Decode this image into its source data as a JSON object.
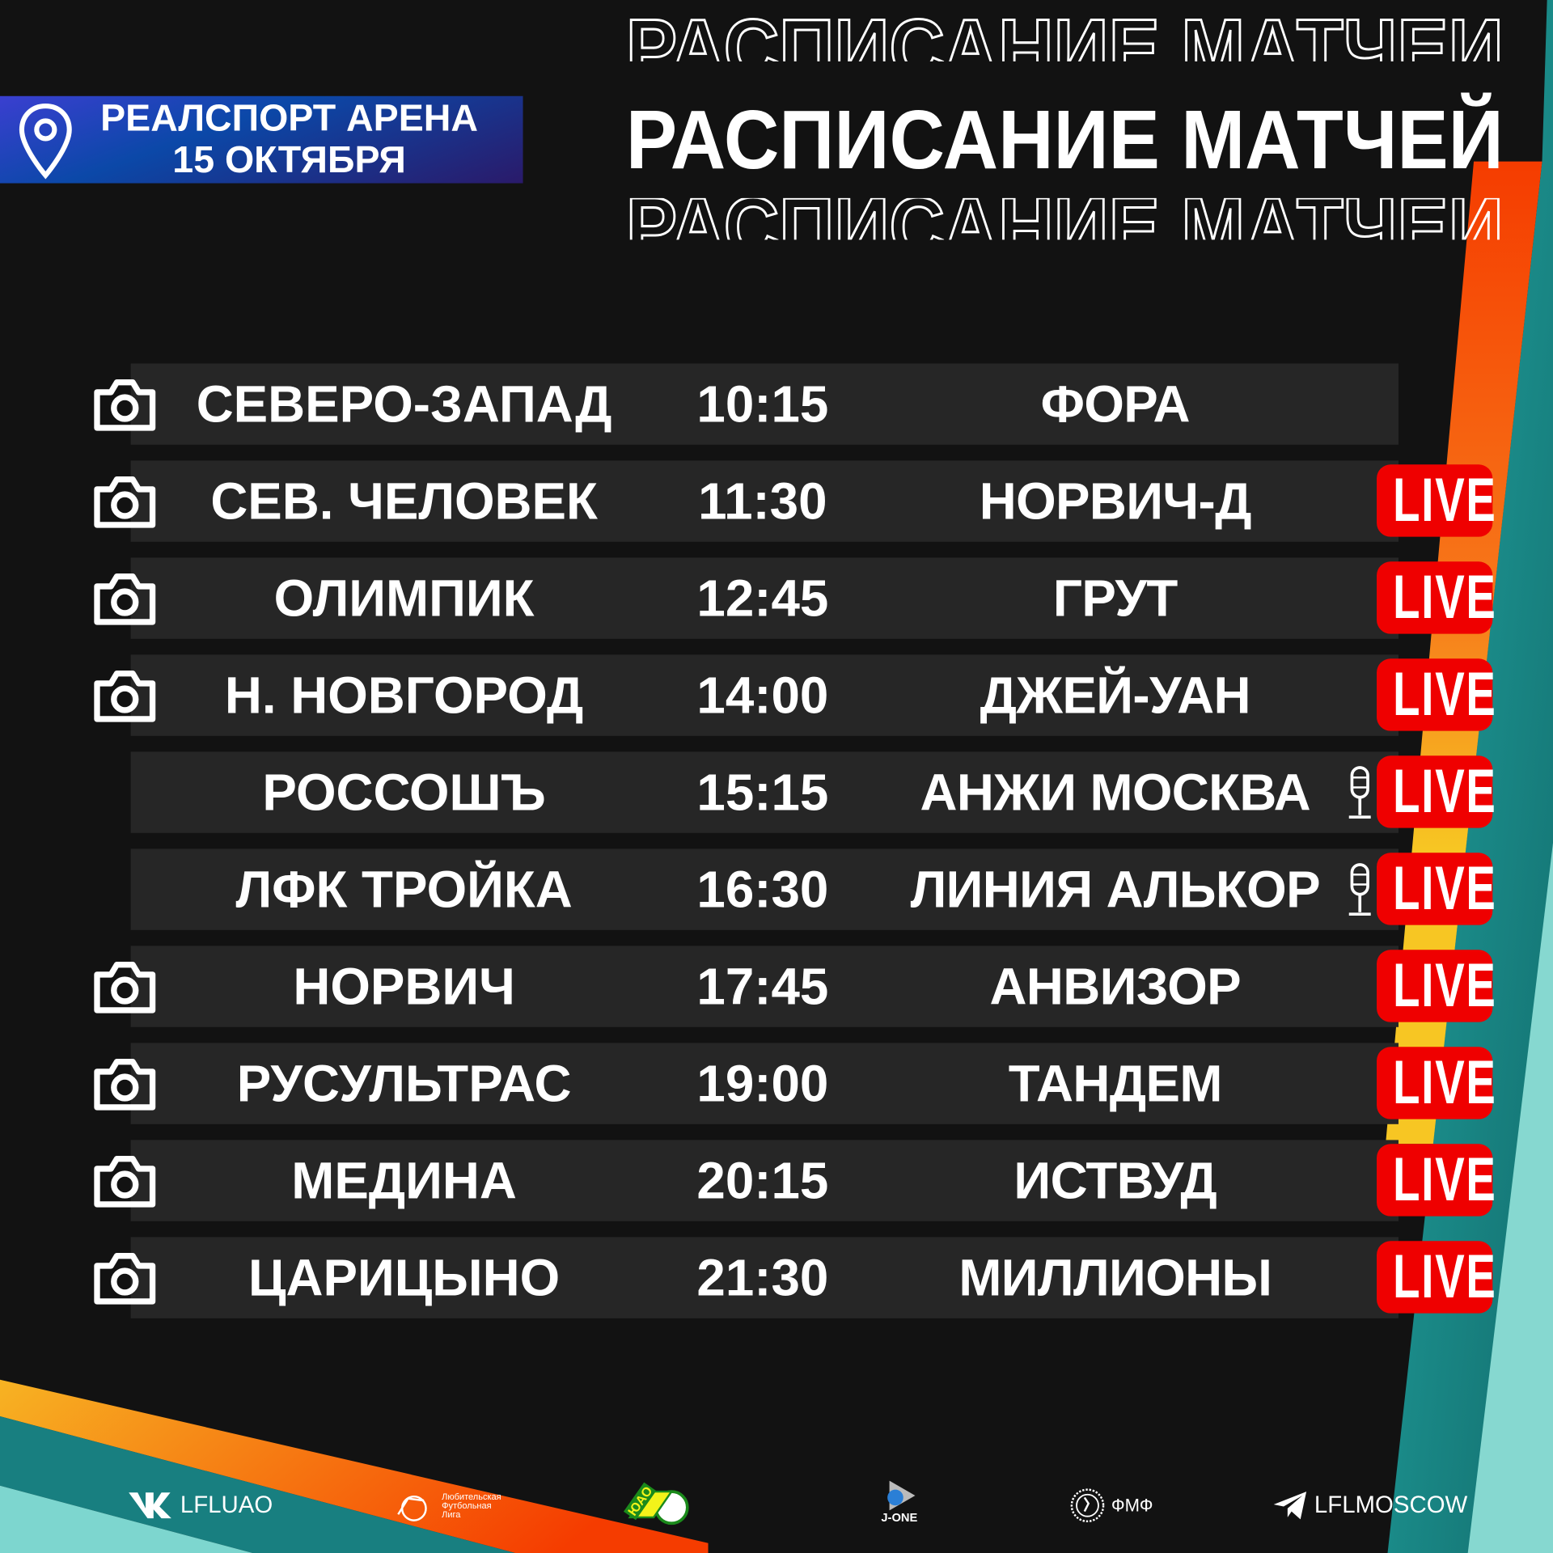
{
  "header": {
    "title": "РАСПИСАНИЕ МАТЧЕЙ",
    "venue": "РЕАЛСПОРТ АРЕНА",
    "date": "15 ОКТЯБРЯ",
    "venue_icon": "map-pin-icon"
  },
  "colors": {
    "background": "#121212",
    "row": "#262626",
    "live": "#ef0000",
    "orange": "#f53c00",
    "yellow": "#f7c623",
    "teal": "#167a7a",
    "light_teal": "#86d8d0"
  },
  "matches": [
    {
      "team1": "СЕВЕРО-ЗАПАД",
      "time": "10:15",
      "team2": "ФОРА",
      "camera": true,
      "mic": false,
      "live": false
    },
    {
      "team1": "СЕВ. ЧЕЛОВЕК",
      "time": "11:30",
      "team2": "НОРВИЧ-Д",
      "camera": true,
      "mic": false,
      "live": true
    },
    {
      "team1": "ОЛИМПИК",
      "time": "12:45",
      "team2": "ГРУТ",
      "camera": true,
      "mic": false,
      "live": true
    },
    {
      "team1": "Н. НОВГОРОД",
      "time": "14:00",
      "team2": "ДЖЕЙ-УАН",
      "camera": true,
      "mic": false,
      "live": true
    },
    {
      "team1": "РОССОШЪ",
      "time": "15:15",
      "team2": "АНЖИ МОСКВА",
      "camera": false,
      "mic": true,
      "live": true
    },
    {
      "team1": "ЛФК ТРОЙКА",
      "time": "16:30",
      "team2": "ЛИНИЯ АЛЬКОР",
      "camera": false,
      "mic": true,
      "live": true
    },
    {
      "team1": "НОРВИЧ",
      "time": "17:45",
      "team2": "АНВИЗОР",
      "camera": true,
      "mic": false,
      "live": true
    },
    {
      "team1": "РУСУЛЬТРАС",
      "time": "19:00",
      "team2": "ТАНДЕМ",
      "camera": true,
      "mic": false,
      "live": true
    },
    {
      "team1": "МЕДИНА",
      "time": "20:15",
      "team2": "ИСТВУД",
      "camera": true,
      "mic": false,
      "live": true
    },
    {
      "team1": "ЦАРИЦЫНО",
      "time": "21:30",
      "team2": "МИЛЛИОНЫ",
      "camera": true,
      "mic": false,
      "live": true
    }
  ],
  "live_label": "LIVE",
  "footer": {
    "vk": {
      "icon": "vk-icon",
      "label": "LFLUAO"
    },
    "league": {
      "label": "Любительская Футбольная Лига"
    },
    "yuao": {
      "label": "ЮАО"
    },
    "jone": {
      "label": "J-ONE"
    },
    "fmf": {
      "label": "ФМФ"
    },
    "telegram": {
      "icon": "telegram-icon",
      "label": "LFLMOSCOW"
    }
  }
}
